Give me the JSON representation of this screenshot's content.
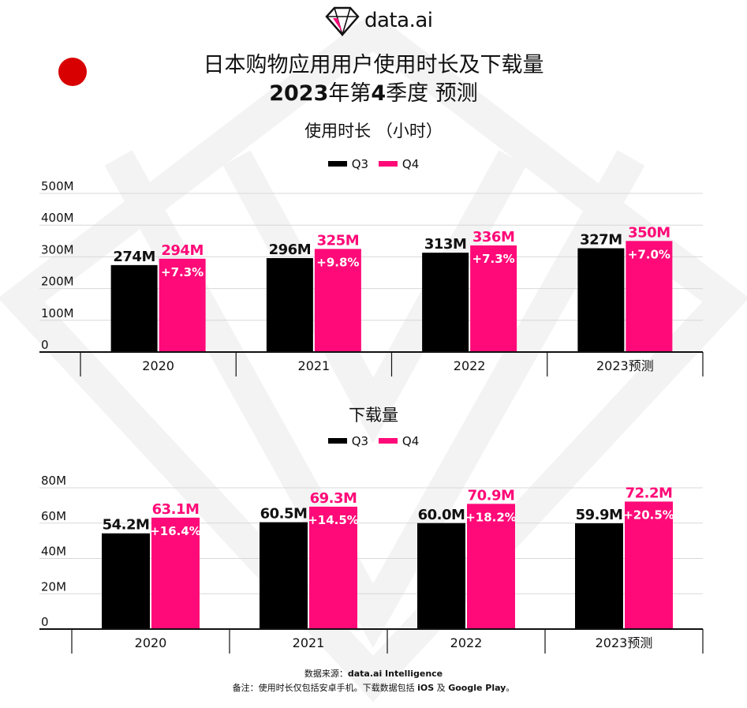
{
  "brand": {
    "name": "data.ai"
  },
  "title": {
    "line1": "日本购物应用用户使用时长及下载量",
    "line2_year": "2023",
    "line2_mid": "年第",
    "line2_q": "4",
    "line2_end": "季度 预测"
  },
  "colors": {
    "q3": "#000000",
    "q4": "#ff0a78",
    "flag": "#d80000",
    "grid": "#d8d8d8"
  },
  "legend": {
    "q3": "Q3",
    "q4": "Q4"
  },
  "chart_data": [
    {
      "type": "bar",
      "title": "使用时长 （小时）",
      "categories": [
        "2020",
        "2021",
        "2022",
        "2023预测"
      ],
      "ylim": [
        0,
        500
      ],
      "yticks": [
        "0",
        "100M",
        "200M",
        "300M",
        "400M",
        "500M"
      ],
      "series": [
        {
          "name": "Q3",
          "values": [
            274,
            296,
            313,
            327
          ],
          "labels": [
            "274M",
            "296M",
            "313M",
            "327M"
          ]
        },
        {
          "name": "Q4",
          "values": [
            294,
            325,
            336,
            350
          ],
          "labels": [
            "294M",
            "325M",
            "336M",
            "350M"
          ],
          "growth": [
            "+7.3%",
            "+9.8%",
            "+7.3%",
            "+7.0%"
          ]
        }
      ]
    },
    {
      "type": "bar",
      "title": "下载量",
      "categories": [
        "2020",
        "2021",
        "2022",
        "2023预测"
      ],
      "ylim": [
        0,
        80
      ],
      "yticks": [
        "0",
        "20M",
        "40M",
        "60M",
        "80M"
      ],
      "series": [
        {
          "name": "Q3",
          "values": [
            54.2,
            60.5,
            60.0,
            59.9
          ],
          "labels": [
            "54.2M",
            "60.5M",
            "60.0M",
            "59.9M"
          ]
        },
        {
          "name": "Q4",
          "values": [
            63.1,
            69.3,
            70.9,
            72.2
          ],
          "labels": [
            "63.1M",
            "69.3M",
            "70.9M",
            "72.2M"
          ],
          "growth": [
            "+16.4%",
            "+14.5%",
            "+18.2%",
            "+20.5%"
          ]
        }
      ]
    }
  ],
  "footer": {
    "source_prefix": "数据来源：",
    "source": "data.ai Intelligence",
    "note_prefix": "备注：使用时长仅包括安卓手机。下载数据包括 ",
    "note_ios": "iOS",
    "note_and": " 及 ",
    "note_gp": "Google Play",
    "note_end": "。"
  }
}
